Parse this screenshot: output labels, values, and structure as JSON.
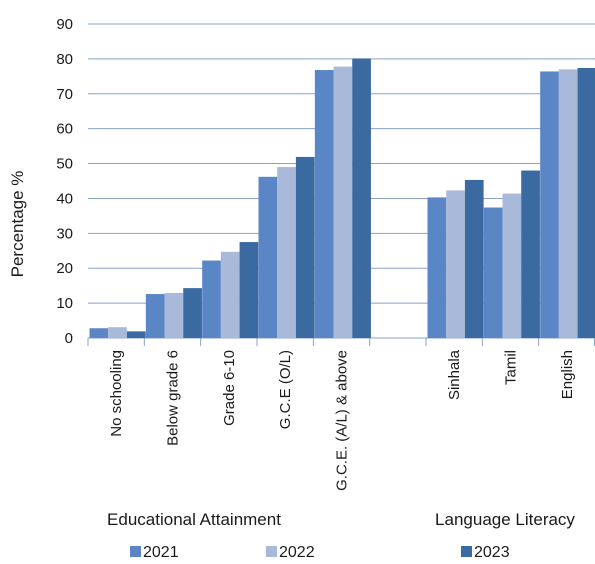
{
  "chart_data": {
    "type": "bar",
    "title": "",
    "xlabel": "",
    "ylabel": "Percentage %",
    "ylim": [
      0,
      90
    ],
    "yticks": [
      0,
      10,
      20,
      30,
      40,
      50,
      60,
      70,
      80,
      90
    ],
    "grid": true,
    "legend_position": "bottom",
    "categories": [
      "No schooling",
      "Below grade 6",
      "Grade 6-10",
      "G.C.E (O/L)",
      "G.C.E. (A/L) & above",
      "",
      "Sinhala",
      "Tamil",
      "English"
    ],
    "group_labels": [
      "Educational Attainment",
      "Language Literacy"
    ],
    "series": [
      {
        "name": "2021",
        "color": "#5b86c6",
        "values": [
          2.8,
          12.6,
          22.2,
          46.2,
          76.8,
          null,
          40.3,
          37.4,
          76.4
        ]
      },
      {
        "name": "2022",
        "color": "#a9b9d9",
        "values": [
          3.1,
          12.9,
          24.7,
          49.0,
          77.8,
          null,
          42.3,
          41.4,
          77.0
        ]
      },
      {
        "name": "2023",
        "color": "#3b6aa0",
        "values": [
          1.9,
          14.3,
          27.5,
          51.9,
          80.1,
          null,
          45.3,
          48.0,
          77.4
        ]
      }
    ]
  }
}
